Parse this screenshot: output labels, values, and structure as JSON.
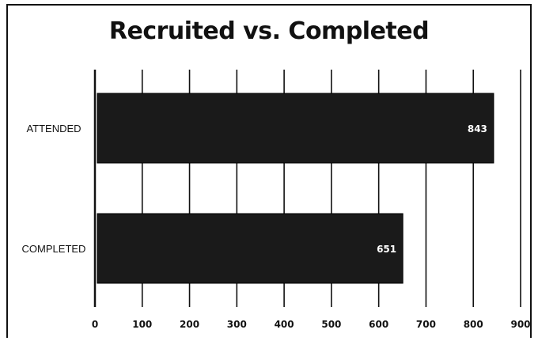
{
  "chart_data": {
    "type": "bar",
    "orientation": "horizontal",
    "title": "Recruited vs. Completed",
    "xlabel": "",
    "ylabel": "",
    "categories": [
      "ATTENDED",
      "COMPLETED"
    ],
    "values": [
      843,
      651
    ],
    "data_labels": [
      "843",
      "651"
    ],
    "xlim": [
      0,
      900
    ],
    "xticks": [
      "0",
      "100",
      "200",
      "300",
      "400",
      "500",
      "600",
      "700",
      "800",
      "900"
    ],
    "grid": "vertical",
    "legend": "none",
    "colors": {
      "bar": "#1a1a1a",
      "grid": "#111111",
      "data_label": "#ffffff"
    }
  }
}
